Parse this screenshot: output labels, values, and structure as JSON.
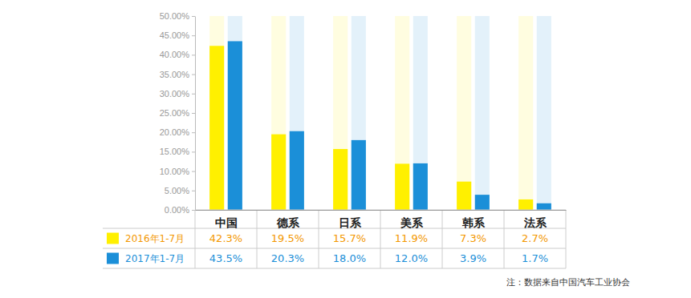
{
  "chart_data": {
    "type": "bar",
    "categories": [
      "中国",
      "德系",
      "日系",
      "美系",
      "韩系",
      "法系"
    ],
    "series": [
      {
        "name": "2016年1-7月",
        "color": "#fff000",
        "values": [
          42.3,
          19.5,
          15.7,
          11.9,
          7.3,
          2.7
        ],
        "value_labels": [
          "42.3%",
          "19.5%",
          "15.7%",
          "11.9%",
          "7.3%",
          "2.7%"
        ]
      },
      {
        "name": "2017年1-7月",
        "color": "#1b8fd8",
        "values": [
          43.5,
          20.3,
          18.0,
          12.0,
          3.9,
          1.7
        ],
        "value_labels": [
          "43.5%",
          "20.3%",
          "18.0%",
          "12.0%",
          "3.9%",
          "1.7%"
        ]
      }
    ],
    "ylim": [
      0,
      50
    ],
    "yticks": [
      {
        "value": 0,
        "label": "0.00%"
      },
      {
        "value": 5,
        "label": "5.00%"
      },
      {
        "value": 10,
        "label": "10.00%"
      },
      {
        "value": 15,
        "label": "15.00%"
      },
      {
        "value": 20,
        "label": "20.00%"
      },
      {
        "value": 25,
        "label": "25.00%"
      },
      {
        "value": 30,
        "label": "30.00%"
      },
      {
        "value": 35,
        "label": "35.00%"
      },
      {
        "value": 40,
        "label": "40.00%"
      },
      {
        "value": 45,
        "label": "45.00%"
      },
      {
        "value": 50,
        "label": "50.00%"
      }
    ],
    "grid": false,
    "data_labels": true,
    "annotations": [
      "注：数据来自中国汽车工业协会"
    ]
  }
}
